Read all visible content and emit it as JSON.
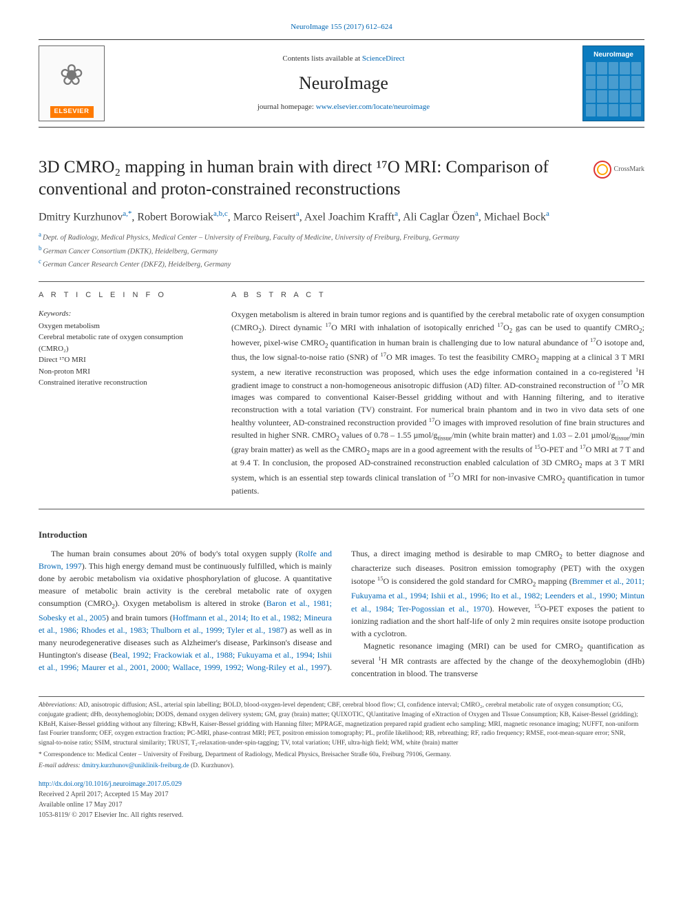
{
  "journal": {
    "citation": "NeuroImage 155 (2017) 612–624",
    "contents_prefix": "Contents lists available at ",
    "contents_link": "ScienceDirect",
    "name": "NeuroImage",
    "homepage_prefix": "journal homepage: ",
    "homepage_url": "www.elsevier.com/locate/neuroimage",
    "publisher_label": "ELSEVIER",
    "cover_title": "NeuroImage"
  },
  "crossmark_label": "CrossMark",
  "article": {
    "title_html": "3D CMRO₂ mapping in human brain with direct ¹⁷O MRI: Comparison of conventional and proton-constrained reconstructions",
    "authors_html": "Dmitry Kurzhunov<sup class=\"aff\">a,*</sup>, Robert Borowiak<sup class=\"aff\">a,b,c</sup>, Marco Reisert<sup class=\"aff\">a</sup>, Axel Joachim Krafft<sup class=\"aff\">a</sup>, Ali Caglar Özen<sup class=\"aff\">a</sup>, Michael Bock<sup class=\"aff\">a</sup>",
    "affiliations": [
      {
        "sup": "a",
        "text": "Dept. of Radiology, Medical Physics, Medical Center – University of Freiburg, Faculty of Medicine, University of Freiburg, Freiburg, Germany"
      },
      {
        "sup": "b",
        "text": "German Cancer Consortium (DKTK), Heidelberg, Germany"
      },
      {
        "sup": "c",
        "text": "German Cancer Research Center (DKFZ), Heidelberg, Germany"
      }
    ]
  },
  "section_heads": {
    "article_info": "A R T I C L E  I N F O",
    "abstract": "A B S T R A C T",
    "introduction": "Introduction"
  },
  "keywords_label": "Keywords:",
  "keywords": "Oxygen metabolism\nCerebral metabolic rate of oxygen consumption (CMRO₂)\nDirect ¹⁷O MRI\nNon-proton MRI\nConstrained iterative reconstruction",
  "abstract_html": "Oxygen metabolism is altered in brain tumor regions and is quantified by the cerebral metabolic rate of oxygen consumption (CMRO<sub>2</sub>). Direct dynamic <sup>17</sup>O MRI with inhalation of isotopically enriched <sup>17</sup>O<sub>2</sub> gas can be used to quantify CMRO<sub>2</sub>; however, pixel-wise CMRO<sub>2</sub> quantification in human brain is challenging due to low natural abundance of <sup>17</sup>O isotope and, thus, the low signal-to-noise ratio (SNR) of <sup>17</sup>O MR images. To test the feasibility CMRO<sub>2</sub> mapping at a clinical 3 T MRI system, a new iterative reconstruction was proposed, which uses the edge information contained in a co-registered <sup>1</sup>H gradient image to construct a non-homogeneous anisotropic diffusion (AD) filter. AD-constrained reconstruction of <sup>17</sup>O MR images was compared to conventional Kaiser-Bessel gridding without and with Hanning filtering, and to iterative reconstruction with a total variation (TV) constraint. For numerical brain phantom and in two in vivo data sets of one healthy volunteer, AD-constrained reconstruction provided <sup>17</sup>O images with improved resolution of fine brain structures and resulted in higher SNR. CMRO<sub>2</sub> values of 0.78 – 1.55 µmol/g<sub>tissue</sub>/min (white brain matter) and 1.03 – 2.01 µmol/g<sub>tissue</sub>/min (gray brain matter) as well as the CMRO<sub>2</sub> maps are in a good agreement with the results of <sup>15</sup>O-PET and <sup>17</sup>O MRI at 7 T and at 9.4 T. In conclusion, the proposed AD-constrained reconstruction enabled calculation of 3D CMRO<sub>2</sub> maps at 3 T MRI system, which is an essential step towards clinical translation of <sup>17</sup>O MRI for non-invasive CMRO<sub>2</sub> quantification in tumor patients.",
  "introduction_html": "<p>The human brain consumes about 20% of body's total oxygen supply (<a href=\"#\">Rolfe and Brown, 1997</a>). This high energy demand must be continuously fulfilled, which is mainly done by aerobic metabolism via oxidative phosphorylation of glucose. A quantitative measure of metabolic brain activity is the cerebral metabolic rate of oxygen consumption (CMRO<sub>2</sub>). Oxygen metabolism is altered in stroke (<a href=\"#\">Baron et al., 1981; Sobesky et al., 2005</a>) and brain tumors (<a href=\"#\">Hoffmann et al., 2014; Ito et al., 1982; Mineura et al., 1986; Rhodes et al., 1983; Thulborn et al., 1999; Tyler et al., 1987</a>) as well as in many neurodegenerative diseases such as Alzheimer's disease, Parkinson's disease and Huntington's disease (<a href=\"#\">Beal, 1992; Frackowiak et al., 1988; Fukuyama et al., 1994; Ishii et al., 1996; Maurer et al., 2001, 2000; Wallace, 1999, 1992; Wong-Riley et al., 1997</a>). Thus, a direct imaging method is desirable to map CMRO<sub>2</sub> to better diagnose and characterize such diseases. Positron emission tomography (PET) with the oxygen isotope <sup>15</sup>O is considered the gold standard for CMRO<sub>2</sub> mapping (<a href=\"#\">Bremmer et al., 2011; Fukuyama et al., 1994; Ishii et al., 1996; Ito et al., 1982; Leenders et al., 1990; Mintun et al., 1984; Ter-Pogossian et al., 1970</a>). However, <sup>15</sup>O-PET exposes the patient to ionizing radiation and the short half-life of only 2 min requires onsite isotope production with a cyclotron.</p><p>Magnetic resonance imaging (MRI) can be used for CMRO<sub>2</sub> quantification as several <sup>1</sup>H MR contrasts are affected by the change of the deoxyhemoglobin (dHb) concentration in blood. The transverse</p>",
  "footnotes": {
    "abbrev_label": "Abbreviations:",
    "abbrev_text": " AD, anisotropic diffusion; ASL, arterial spin labelling; BOLD, blood-oxygen-level dependent; CBF, cerebral blood flow; CI, confidence interval; CMRO₂, cerebral metabolic rate of oxygen consumption; CG, conjugate gradient; dHb, deoxyhemoglobin; DODS, demand oxygen delivery system; GM, gray (brain) matter; QUIXOTIC, QUantitative Imaging of eXtraction of Oxygen and TIssue Consumption; KB, Kaiser-Bessel (gridding); KBnH, Kaiser-Bessel gridding without any filtering; KBwH, Kaiser-Bessel gridding with Hanning filter; MPRAGE, magnetization prepared rapid gradient echo sampling; MRI, magnetic resonance imaging; NUFFT, non-uniform fast Fourier transform; OEF, oxygen extraction fraction; PC-MRI, phase-contrast MRI; PET, positron emission tomography; PL, profile likelihood; RB, rebreathing; RF, radio frequency; RMSE, root-mean-square error; SNR, signal-to-noise ratio; SSIM, structural similarity; TRUST, T₂-relaxation-under-spin-tagging; TV, total variation; UHF, ultra-high field; WM, white (brain) matter",
    "corr_marker": "*",
    "corr_text": " Correspondence to: Medical Center – University of Freiburg, Department of Radiology, Medical Physics, Breisacher Straße 60a, Freiburg 79106, Germany.",
    "email_label": "E-mail address:",
    "email_value": "dmitry.kurzhunov@uniklinik-freiburg.de",
    "email_suffix": " (D. Kurzhunov)."
  },
  "doi": {
    "url": "http://dx.doi.org/10.1016/j.neuroimage.2017.05.029",
    "received": "Received 2 April 2017; Accepted 15 May 2017",
    "available": "Available online 17 May 2017",
    "copyright": "1053-8119/ © 2017 Elsevier Inc. All rights reserved."
  },
  "colors": {
    "link": "#0066b3",
    "elsevier_orange": "#ff7a00",
    "cover_blue": "#0b7bbf",
    "rule": "#555555",
    "text": "#333333"
  }
}
